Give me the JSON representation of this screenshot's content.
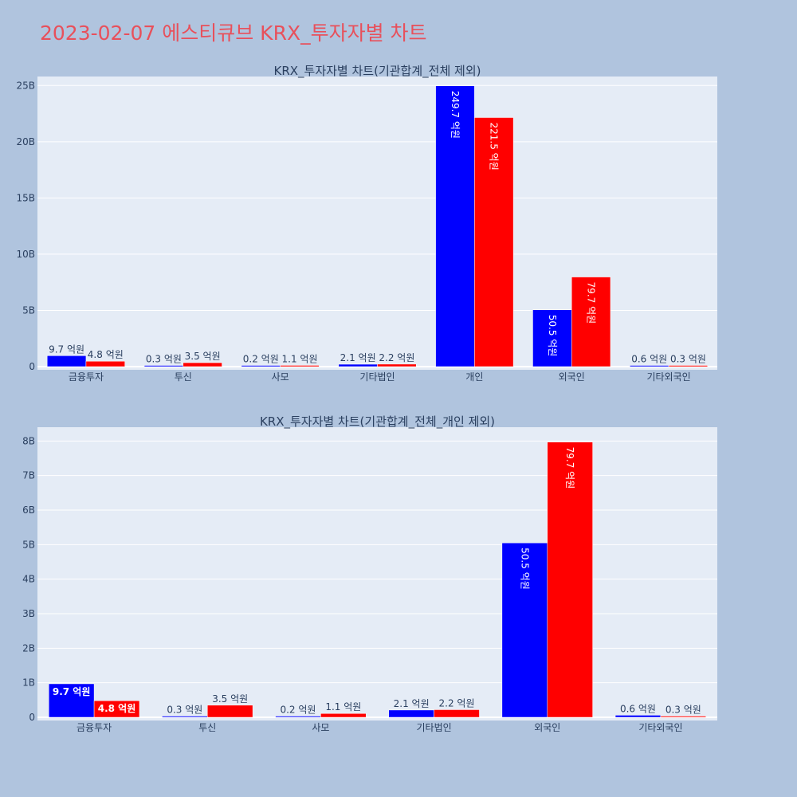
{
  "title": "2023-02-07 에스티큐브 KRX_투자자별 차트",
  "colors": {
    "background": "#b0c4de",
    "plot_bg": "#e5ecf6",
    "buy": "#0000ff",
    "sell": "#ff0000",
    "title": "#e8505b",
    "text": "#2a3f5f"
  },
  "chart_data": [
    {
      "type": "bar",
      "title": "KRX_투자자별 차트(기관합계_전체 제외)",
      "categories": [
        "금융투자",
        "투신",
        "사모",
        "기타법인",
        "개인",
        "외국인",
        "기타외국인"
      ],
      "series": [
        {
          "values": [
            0.97,
            0.03,
            0.02,
            0.21,
            24.97,
            5.05,
            0.06
          ],
          "labels": [
            "9.7 억원",
            "0.3 억원",
            "0.2 억원",
            "2.1 억원",
            "249.7 억원",
            "50.5 억원",
            "0.6 억원"
          ]
        },
        {
          "values": [
            0.48,
            0.35,
            0.11,
            0.22,
            22.15,
            7.97,
            0.03
          ],
          "labels": [
            "4.8 억원",
            "3.5 억원",
            "1.1 억원",
            "2.2 억원",
            "221.5 억원",
            "79.7 억원",
            "0.3 억원"
          ]
        }
      ],
      "ylim": [
        0,
        25.8
      ],
      "yticks": [
        0,
        5,
        10,
        15,
        20,
        25
      ],
      "ytick_labels": [
        "0",
        "5B",
        "10B",
        "15B",
        "20B",
        "25B"
      ],
      "grid": true
    },
    {
      "type": "bar",
      "title": "KRX_투자자별 차트(기관합계_전체_개인 제외)",
      "categories": [
        "금융투자",
        "투신",
        "사모",
        "기타법인",
        "외국인",
        "기타외국인"
      ],
      "series": [
        {
          "values": [
            0.97,
            0.03,
            0.02,
            0.21,
            5.05,
            0.06
          ],
          "labels": [
            "9.7 억원",
            "0.3 억원",
            "0.2 억원",
            "2.1 억원",
            "50.5 억원",
            "0.6 억원"
          ]
        },
        {
          "values": [
            0.48,
            0.35,
            0.11,
            0.22,
            7.97,
            0.03
          ],
          "labels": [
            "4.8 억원",
            "3.5 억원",
            "1.1 억원",
            "2.2 억원",
            "79.7 억원",
            "0.3 억원"
          ]
        }
      ],
      "ylim": [
        0,
        8.4
      ],
      "yticks": [
        0,
        1,
        2,
        3,
        4,
        5,
        6,
        7,
        8
      ],
      "ytick_labels": [
        "0",
        "1B",
        "2B",
        "3B",
        "4B",
        "5B",
        "6B",
        "7B",
        "8B"
      ],
      "grid": true
    }
  ]
}
